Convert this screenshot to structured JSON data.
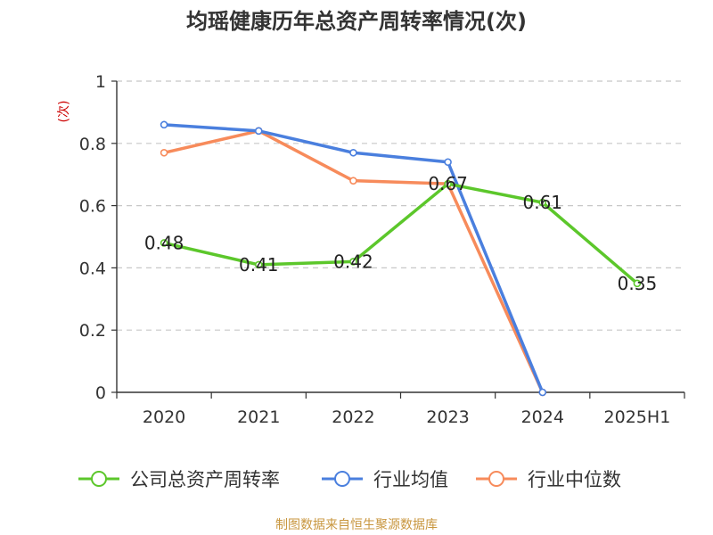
{
  "chart_data": {
    "type": "line",
    "title": "均瑶健康历年总资产周转率情况(次)",
    "ylabel": "(次)",
    "xlabel": "",
    "categories": [
      "2020",
      "2021",
      "2022",
      "2023",
      "2024",
      "2025H1"
    ],
    "ylim": [
      0,
      1
    ],
    "yticks": [
      "0",
      "0.2",
      "0.4",
      "0.6",
      "0.8",
      "1"
    ],
    "grid": true,
    "legend_position": "bottom",
    "series": [
      {
        "name": "公司总资产周转率",
        "color": "#5cc72b",
        "values": [
          0.48,
          0.41,
          0.42,
          0.67,
          0.61,
          0.35
        ],
        "labels": [
          "0.48",
          "0.41",
          "0.42",
          "0.67",
          "0.61",
          "0.35"
        ]
      },
      {
        "name": "行业均值",
        "color": "#4a7fde",
        "values": [
          0.86,
          0.84,
          0.77,
          0.74,
          0,
          null
        ]
      },
      {
        "name": "行业中位数",
        "color": "#f78b5b",
        "values": [
          0.77,
          0.84,
          0.68,
          0.67,
          0,
          null
        ]
      }
    ]
  },
  "source": "制图数据来自恒生聚源数据库"
}
